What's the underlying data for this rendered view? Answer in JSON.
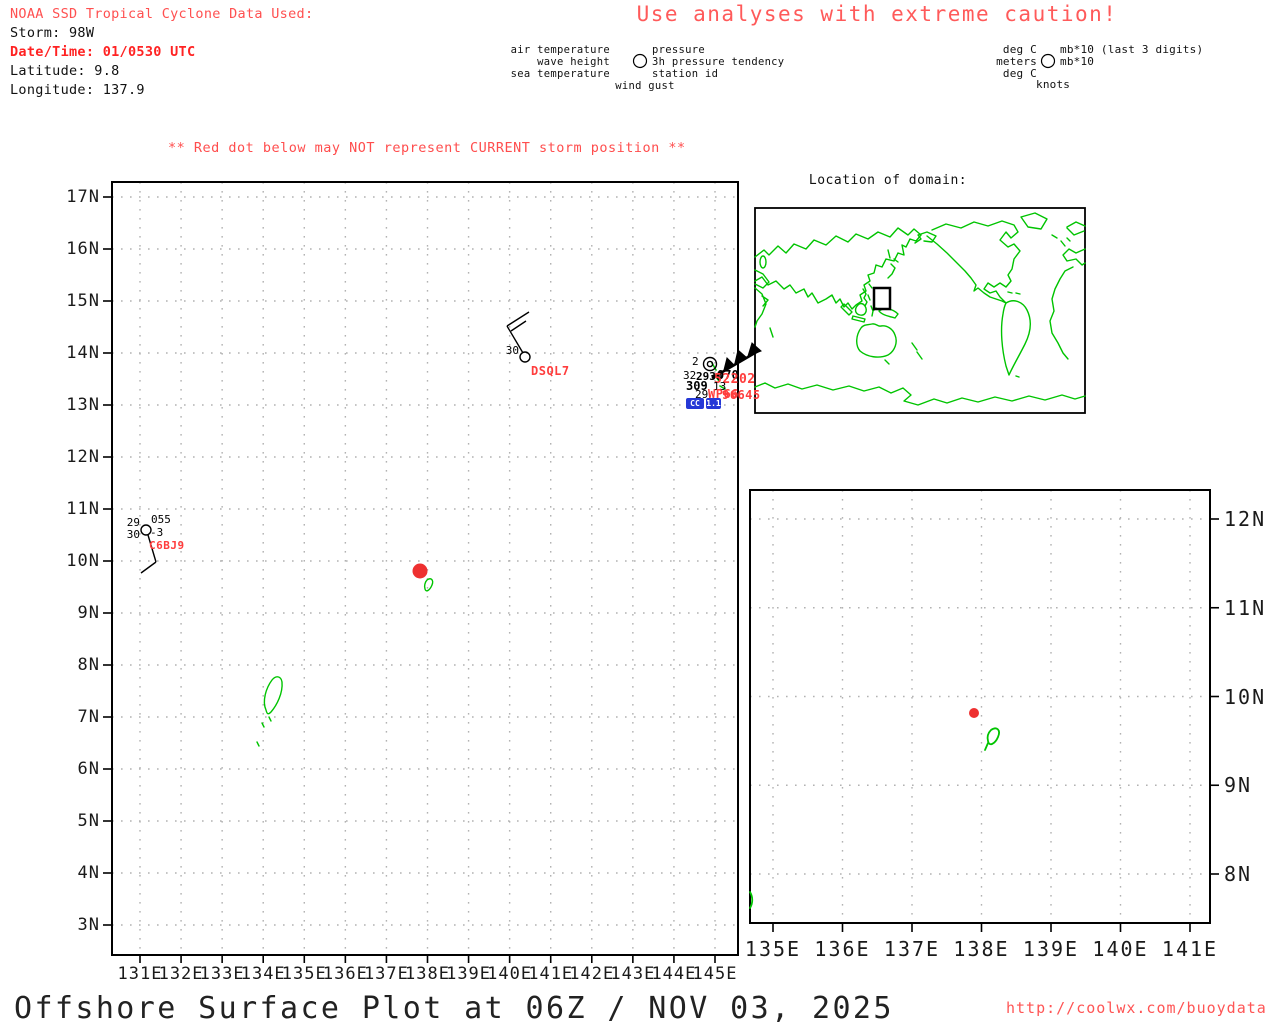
{
  "header": {
    "source_line": "NOAA SSD Tropical Cyclone Data Used:",
    "storm": "Storm: 98W",
    "datetime": "Date/Time: 01/0530 UTC",
    "latitude": "Latitude: 9.8",
    "longitude": "Longitude: 137.9"
  },
  "caution_banner": "Use analyses with extreme caution!",
  "storm_position_warning": "** Red dot below may NOT represent CURRENT storm position **",
  "station_model_legend": {
    "air_temperature": "air temperature",
    "wave_height": "wave height",
    "sea_temperature": "sea temperature",
    "wind_gust": "wind gust",
    "pressure": "pressure",
    "pressure_tendency": "3h pressure tendency",
    "station_id": "station id"
  },
  "units_legend": {
    "air_temperature_units": "deg C",
    "wave_height_units": "meters",
    "sea_temperature_units": "deg C",
    "wind_gust_units": "knots",
    "pressure_units": "mb*10 (last 3 digits)",
    "pressure_tendency_units": "mb*10"
  },
  "domain_map": {
    "title": "Location of domain:"
  },
  "main_map": {
    "x_tick_labels": [
      "131E",
      "132E",
      "133E",
      "134E",
      "135E",
      "136E",
      "137E",
      "138E",
      "139E",
      "140E",
      "141E",
      "142E",
      "143E",
      "144E",
      "145E"
    ],
    "y_tick_labels": [
      "17N",
      "16N",
      "15N",
      "14N",
      "13N",
      "12N",
      "11N",
      "10N",
      "9N",
      "8N",
      "7N",
      "6N",
      "5N",
      "4N",
      "3N"
    ],
    "storm": {
      "lat": "9.8",
      "lon": "137.9"
    },
    "stations": {
      "dsql7": {
        "air_temp": "30",
        "id": "DSQL7"
      },
      "c6bj9": {
        "air_temp": "29",
        "pressure": "055",
        "sea_temp": "30",
        "pressure_tendency": "-3",
        "id": "C6BJ9"
      },
      "guam_cluster": {
        "wave_height": "2",
        "air_temp": "32",
        "overlap_a": "2930",
        "pressure": "070",
        "overlap_b": "309",
        "pressure_tendency": "13",
        "sea_temp": "29",
        "buoy_id": "52202",
        "ship_id_a": "WP66",
        "ship_id_b": "96645",
        "chip_a": "CC",
        "chip_b": "1.1"
      }
    }
  },
  "inset_map": {
    "x_tick_labels": [
      "135E",
      "136E",
      "137E",
      "138E",
      "139E",
      "140E",
      "141E"
    ],
    "y_tick_labels": [
      "12N",
      "11N",
      "10N",
      "9N",
      "8N"
    ]
  },
  "footer": {
    "title": "Offshore Surface Plot at 06Z / NOV 03, 2025",
    "url": "http://coolwx.com/buoydata"
  },
  "colors": {
    "red_text": "#ff5050",
    "bright_red": "#ff2222",
    "station_red": "#ff3d3d",
    "coast_green": "#00c400",
    "storm_red": "#ee3030",
    "chip_blue": "#2538d6",
    "grid_gray": "#b2b2b2"
  }
}
